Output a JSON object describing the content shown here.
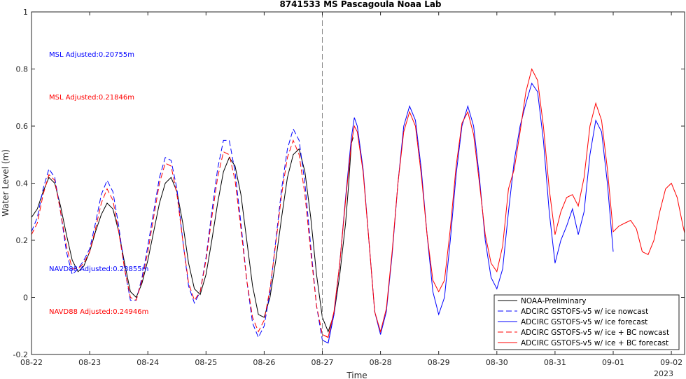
{
  "chart_data": {
    "type": "line",
    "title": "8741533 MS Pascagoula Noaa Lab",
    "xlabel": "Time",
    "ylabel": "Water Level (m)",
    "x_tick_labels": [
      "08-22",
      "08-23",
      "08-24",
      "08-25",
      "08-26",
      "08-27",
      "08-28",
      "08-29",
      "08-30",
      "08-31",
      "09-01",
      "09-02"
    ],
    "x_year_label": "2023",
    "xlim_days": [
      0,
      11.2
    ],
    "ylim": [
      -0.2,
      1
    ],
    "y_ticks": [
      -0.2,
      0,
      0.2,
      0.4,
      0.6,
      0.8,
      1
    ],
    "grid": false,
    "legend_position": "bottom-right",
    "forecast_start_label": "08-27",
    "annotations": [
      {
        "text": "MSL Adjusted:0.20755m",
        "color": "#0000ff"
      },
      {
        "text": "MSL Adjusted:0.21846m",
        "color": "#ff0000"
      },
      {
        "text": "NAVD88 Adjusted:0.23855m",
        "color": "#0000ff"
      },
      {
        "text": "NAVD88 Adjusted:0.24946m",
        "color": "#ff0000"
      }
    ],
    "series": [
      {
        "name": "NOAA-Preliminary",
        "color": "#000000",
        "dash": "solid",
        "points": [
          [
            0.0,
            0.28
          ],
          [
            0.1,
            0.31
          ],
          [
            0.2,
            0.37
          ],
          [
            0.3,
            0.42
          ],
          [
            0.4,
            0.4
          ],
          [
            0.5,
            0.32
          ],
          [
            0.6,
            0.22
          ],
          [
            0.7,
            0.13
          ],
          [
            0.8,
            0.09
          ],
          [
            0.9,
            0.11
          ],
          [
            1.0,
            0.16
          ],
          [
            1.1,
            0.23
          ],
          [
            1.2,
            0.29
          ],
          [
            1.3,
            0.33
          ],
          [
            1.4,
            0.31
          ],
          [
            1.5,
            0.23
          ],
          [
            1.6,
            0.12
          ],
          [
            1.7,
            0.02
          ],
          [
            1.8,
            0.0
          ],
          [
            1.9,
            0.05
          ],
          [
            2.0,
            0.13
          ],
          [
            2.1,
            0.23
          ],
          [
            2.2,
            0.33
          ],
          [
            2.3,
            0.4
          ],
          [
            2.4,
            0.42
          ],
          [
            2.5,
            0.37
          ],
          [
            2.6,
            0.26
          ],
          [
            2.7,
            0.12
          ],
          [
            2.8,
            0.03
          ],
          [
            2.9,
            0.01
          ],
          [
            3.0,
            0.08
          ],
          [
            3.1,
            0.2
          ],
          [
            3.2,
            0.33
          ],
          [
            3.3,
            0.44
          ],
          [
            3.4,
            0.49
          ],
          [
            3.5,
            0.46
          ],
          [
            3.6,
            0.36
          ],
          [
            3.7,
            0.2
          ],
          [
            3.8,
            0.04
          ],
          [
            3.9,
            -0.06
          ],
          [
            4.0,
            -0.07
          ],
          [
            4.1,
            0.0
          ],
          [
            4.2,
            0.13
          ],
          [
            4.3,
            0.28
          ],
          [
            4.4,
            0.42
          ],
          [
            4.5,
            0.5
          ],
          [
            4.6,
            0.52
          ],
          [
            4.7,
            0.44
          ],
          [
            4.8,
            0.28
          ],
          [
            4.9,
            0.08
          ],
          [
            5.0,
            -0.07
          ],
          [
            5.1,
            -0.12
          ],
          [
            5.2,
            -0.06
          ],
          [
            5.3,
            0.08
          ],
          [
            5.4,
            0.26
          ],
          [
            5.45,
            0.39
          ],
          [
            5.5,
            0.54
          ],
          [
            5.53,
            0.56
          ]
        ]
      },
      {
        "name": "ADCIRC GSTOFS-v5 w/ ice nowcast",
        "color": "#0000ff",
        "dash": "dashed",
        "points": [
          [
            0.0,
            0.23
          ],
          [
            0.1,
            0.28
          ],
          [
            0.2,
            0.38
          ],
          [
            0.3,
            0.45
          ],
          [
            0.4,
            0.42
          ],
          [
            0.5,
            0.3
          ],
          [
            0.6,
            0.16
          ],
          [
            0.7,
            0.08
          ],
          [
            0.8,
            0.1
          ],
          [
            0.9,
            0.13
          ],
          [
            1.0,
            0.17
          ],
          [
            1.1,
            0.26
          ],
          [
            1.2,
            0.36
          ],
          [
            1.3,
            0.41
          ],
          [
            1.4,
            0.37
          ],
          [
            1.5,
            0.25
          ],
          [
            1.6,
            0.1
          ],
          [
            1.7,
            -0.01
          ],
          [
            1.8,
            -0.01
          ],
          [
            1.9,
            0.07
          ],
          [
            2.0,
            0.18
          ],
          [
            2.1,
            0.3
          ],
          [
            2.2,
            0.42
          ],
          [
            2.3,
            0.49
          ],
          [
            2.4,
            0.48
          ],
          [
            2.5,
            0.38
          ],
          [
            2.6,
            0.2
          ],
          [
            2.7,
            0.04
          ],
          [
            2.8,
            -0.02
          ],
          [
            2.9,
            0.02
          ],
          [
            3.0,
            0.14
          ],
          [
            3.1,
            0.3
          ],
          [
            3.2,
            0.45
          ],
          [
            3.3,
            0.55
          ],
          [
            3.4,
            0.55
          ],
          [
            3.5,
            0.44
          ],
          [
            3.6,
            0.26
          ],
          [
            3.7,
            0.06
          ],
          [
            3.8,
            -0.09
          ],
          [
            3.9,
            -0.14
          ],
          [
            4.0,
            -0.1
          ],
          [
            4.1,
            0.02
          ],
          [
            4.2,
            0.2
          ],
          [
            4.3,
            0.38
          ],
          [
            4.4,
            0.52
          ],
          [
            4.5,
            0.59
          ],
          [
            4.6,
            0.55
          ],
          [
            4.7,
            0.4
          ],
          [
            4.8,
            0.18
          ],
          [
            4.9,
            -0.03
          ],
          [
            5.0,
            -0.15
          ],
          [
            5.1,
            -0.16
          ],
          [
            5.2,
            -0.06
          ]
        ]
      },
      {
        "name": "ADCIRC GSTOFS-v5 w/ ice forecast",
        "color": "#0000ff",
        "dash": "solid",
        "points": [
          [
            5.0,
            -0.15
          ],
          [
            5.1,
            -0.16
          ],
          [
            5.2,
            -0.06
          ],
          [
            5.3,
            0.12
          ],
          [
            5.4,
            0.35
          ],
          [
            5.5,
            0.56
          ],
          [
            5.55,
            0.63
          ],
          [
            5.6,
            0.6
          ],
          [
            5.7,
            0.45
          ],
          [
            5.8,
            0.2
          ],
          [
            5.9,
            -0.05
          ],
          [
            6.0,
            -0.13
          ],
          [
            6.1,
            -0.05
          ],
          [
            6.2,
            0.15
          ],
          [
            6.3,
            0.4
          ],
          [
            6.4,
            0.6
          ],
          [
            6.5,
            0.67
          ],
          [
            6.6,
            0.62
          ],
          [
            6.7,
            0.45
          ],
          [
            6.8,
            0.22
          ],
          [
            6.9,
            0.02
          ],
          [
            7.0,
            -0.06
          ],
          [
            7.1,
            0.0
          ],
          [
            7.2,
            0.2
          ],
          [
            7.3,
            0.43
          ],
          [
            7.4,
            0.6
          ],
          [
            7.5,
            0.67
          ],
          [
            7.6,
            0.6
          ],
          [
            7.7,
            0.42
          ],
          [
            7.8,
            0.2
          ],
          [
            7.9,
            0.07
          ],
          [
            8.0,
            0.03
          ],
          [
            8.1,
            0.1
          ],
          [
            8.2,
            0.3
          ],
          [
            8.3,
            0.48
          ],
          [
            8.4,
            0.6
          ],
          [
            8.5,
            0.68
          ],
          [
            8.6,
            0.75
          ],
          [
            8.7,
            0.72
          ],
          [
            8.8,
            0.55
          ],
          [
            8.9,
            0.3
          ],
          [
            9.0,
            0.12
          ],
          [
            9.1,
            0.2
          ],
          [
            9.2,
            0.25
          ],
          [
            9.3,
            0.31
          ],
          [
            9.4,
            0.22
          ],
          [
            9.5,
            0.3
          ],
          [
            9.6,
            0.5
          ],
          [
            9.7,
            0.62
          ],
          [
            9.8,
            0.58
          ],
          [
            9.9,
            0.4
          ],
          [
            10.0,
            0.16
          ]
        ]
      },
      {
        "name": "ADCIRC GSTOFS-v5 w/ ice + BC nowcast",
        "color": "#ff0000",
        "dash": "dashed",
        "points": [
          [
            0.0,
            0.22
          ],
          [
            0.1,
            0.26
          ],
          [
            0.2,
            0.36
          ],
          [
            0.3,
            0.43
          ],
          [
            0.4,
            0.41
          ],
          [
            0.5,
            0.3
          ],
          [
            0.6,
            0.18
          ],
          [
            0.7,
            0.1
          ],
          [
            0.8,
            0.1
          ],
          [
            0.9,
            0.12
          ],
          [
            1.0,
            0.16
          ],
          [
            1.1,
            0.24
          ],
          [
            1.2,
            0.33
          ],
          [
            1.3,
            0.38
          ],
          [
            1.4,
            0.34
          ],
          [
            1.5,
            0.23
          ],
          [
            1.6,
            0.1
          ],
          [
            1.7,
            0.0
          ],
          [
            1.8,
            -0.01
          ],
          [
            1.9,
            0.06
          ],
          [
            2.0,
            0.16
          ],
          [
            2.1,
            0.28
          ],
          [
            2.2,
            0.4
          ],
          [
            2.3,
            0.47
          ],
          [
            2.4,
            0.46
          ],
          [
            2.5,
            0.36
          ],
          [
            2.6,
            0.2
          ],
          [
            2.7,
            0.05
          ],
          [
            2.8,
            -0.01
          ],
          [
            2.9,
            0.02
          ],
          [
            3.0,
            0.13
          ],
          [
            3.1,
            0.28
          ],
          [
            3.2,
            0.42
          ],
          [
            3.3,
            0.51
          ],
          [
            3.4,
            0.5
          ],
          [
            3.5,
            0.41
          ],
          [
            3.6,
            0.24
          ],
          [
            3.7,
            0.06
          ],
          [
            3.8,
            -0.07
          ],
          [
            3.9,
            -0.12
          ],
          [
            4.0,
            -0.08
          ],
          [
            4.1,
            0.03
          ],
          [
            4.2,
            0.19
          ],
          [
            4.3,
            0.36
          ],
          [
            4.4,
            0.49
          ],
          [
            4.5,
            0.55
          ],
          [
            4.6,
            0.5
          ],
          [
            4.7,
            0.36
          ],
          [
            4.8,
            0.16
          ],
          [
            4.9,
            -0.03
          ],
          [
            5.0,
            -0.13
          ],
          [
            5.1,
            -0.14
          ],
          [
            5.2,
            -0.05
          ]
        ]
      },
      {
        "name": "ADCIRC GSTOFS-v5 w/ ice + BC forecast",
        "color": "#ff0000",
        "dash": "solid",
        "points": [
          [
            5.0,
            -0.13
          ],
          [
            5.1,
            -0.14
          ],
          [
            5.2,
            -0.05
          ],
          [
            5.3,
            0.12
          ],
          [
            5.4,
            0.34
          ],
          [
            5.5,
            0.54
          ],
          [
            5.55,
            0.6
          ],
          [
            5.6,
            0.58
          ],
          [
            5.7,
            0.44
          ],
          [
            5.8,
            0.2
          ],
          [
            5.9,
            -0.05
          ],
          [
            6.0,
            -0.12
          ],
          [
            6.1,
            -0.04
          ],
          [
            6.2,
            0.16
          ],
          [
            6.3,
            0.4
          ],
          [
            6.4,
            0.58
          ],
          [
            6.5,
            0.65
          ],
          [
            6.6,
            0.6
          ],
          [
            6.7,
            0.43
          ],
          [
            6.8,
            0.22
          ],
          [
            6.9,
            0.06
          ],
          [
            7.0,
            0.02
          ],
          [
            7.1,
            0.06
          ],
          [
            7.2,
            0.24
          ],
          [
            7.3,
            0.46
          ],
          [
            7.4,
            0.61
          ],
          [
            7.5,
            0.65
          ],
          [
            7.6,
            0.57
          ],
          [
            7.7,
            0.4
          ],
          [
            7.8,
            0.22
          ],
          [
            7.9,
            0.12
          ],
          [
            8.0,
            0.09
          ],
          [
            8.1,
            0.18
          ],
          [
            8.2,
            0.38
          ],
          [
            8.3,
            0.45
          ],
          [
            8.4,
            0.58
          ],
          [
            8.5,
            0.72
          ],
          [
            8.6,
            0.8
          ],
          [
            8.7,
            0.76
          ],
          [
            8.8,
            0.6
          ],
          [
            8.9,
            0.38
          ],
          [
            9.0,
            0.22
          ],
          [
            9.1,
            0.3
          ],
          [
            9.2,
            0.35
          ],
          [
            9.3,
            0.36
          ],
          [
            9.4,
            0.32
          ],
          [
            9.5,
            0.42
          ],
          [
            9.6,
            0.6
          ],
          [
            9.7,
            0.68
          ],
          [
            9.8,
            0.62
          ],
          [
            9.9,
            0.45
          ],
          [
            10.0,
            0.23
          ],
          [
            10.1,
            0.25
          ],
          [
            10.2,
            0.26
          ],
          [
            10.3,
            0.27
          ],
          [
            10.4,
            0.24
          ],
          [
            10.5,
            0.16
          ],
          [
            10.6,
            0.15
          ],
          [
            10.7,
            0.2
          ],
          [
            10.8,
            0.3
          ],
          [
            10.9,
            0.38
          ],
          [
            11.0,
            0.4
          ],
          [
            11.1,
            0.35
          ],
          [
            11.2,
            0.25
          ],
          [
            11.3,
            0.16
          ],
          [
            11.4,
            0.13
          ],
          [
            11.5,
            0.17
          ],
          [
            11.6,
            0.24
          ]
        ]
      }
    ]
  }
}
